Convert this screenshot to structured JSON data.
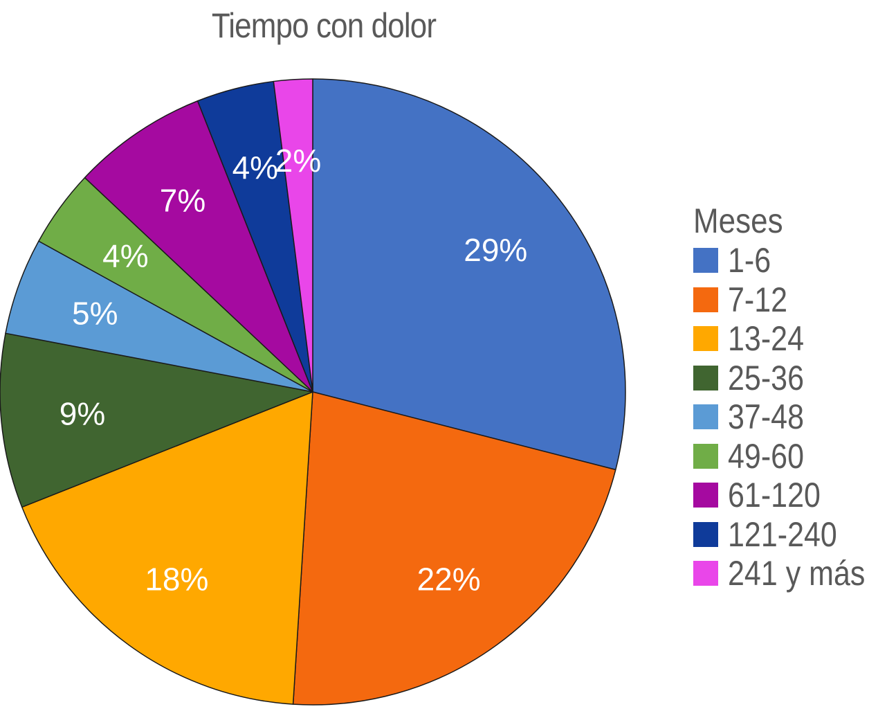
{
  "chart_data": {
    "type": "pie",
    "title": "Tiempo con dolor",
    "legend_title": "Meses",
    "legend_position": "right",
    "categories": [
      "1-6",
      "7-12",
      "13-24",
      "25-36",
      "37-48",
      "49-60",
      "61-120",
      "121-240",
      "241 y más"
    ],
    "values": [
      29,
      22,
      18,
      9,
      5,
      4,
      7,
      4,
      2
    ],
    "labels": [
      "29%",
      "22%",
      "18%",
      "9%",
      "5%",
      "4%",
      "7%",
      "4%",
      "2%"
    ],
    "colors": [
      "#4472C4",
      "#F4690F",
      "#FFA800",
      "#406530",
      "#5B9BD5",
      "#70AD47",
      "#A50AA0",
      "#0F3B9A",
      "#E946E9"
    ],
    "start": "12 o'clock",
    "direction": "clockwise"
  }
}
